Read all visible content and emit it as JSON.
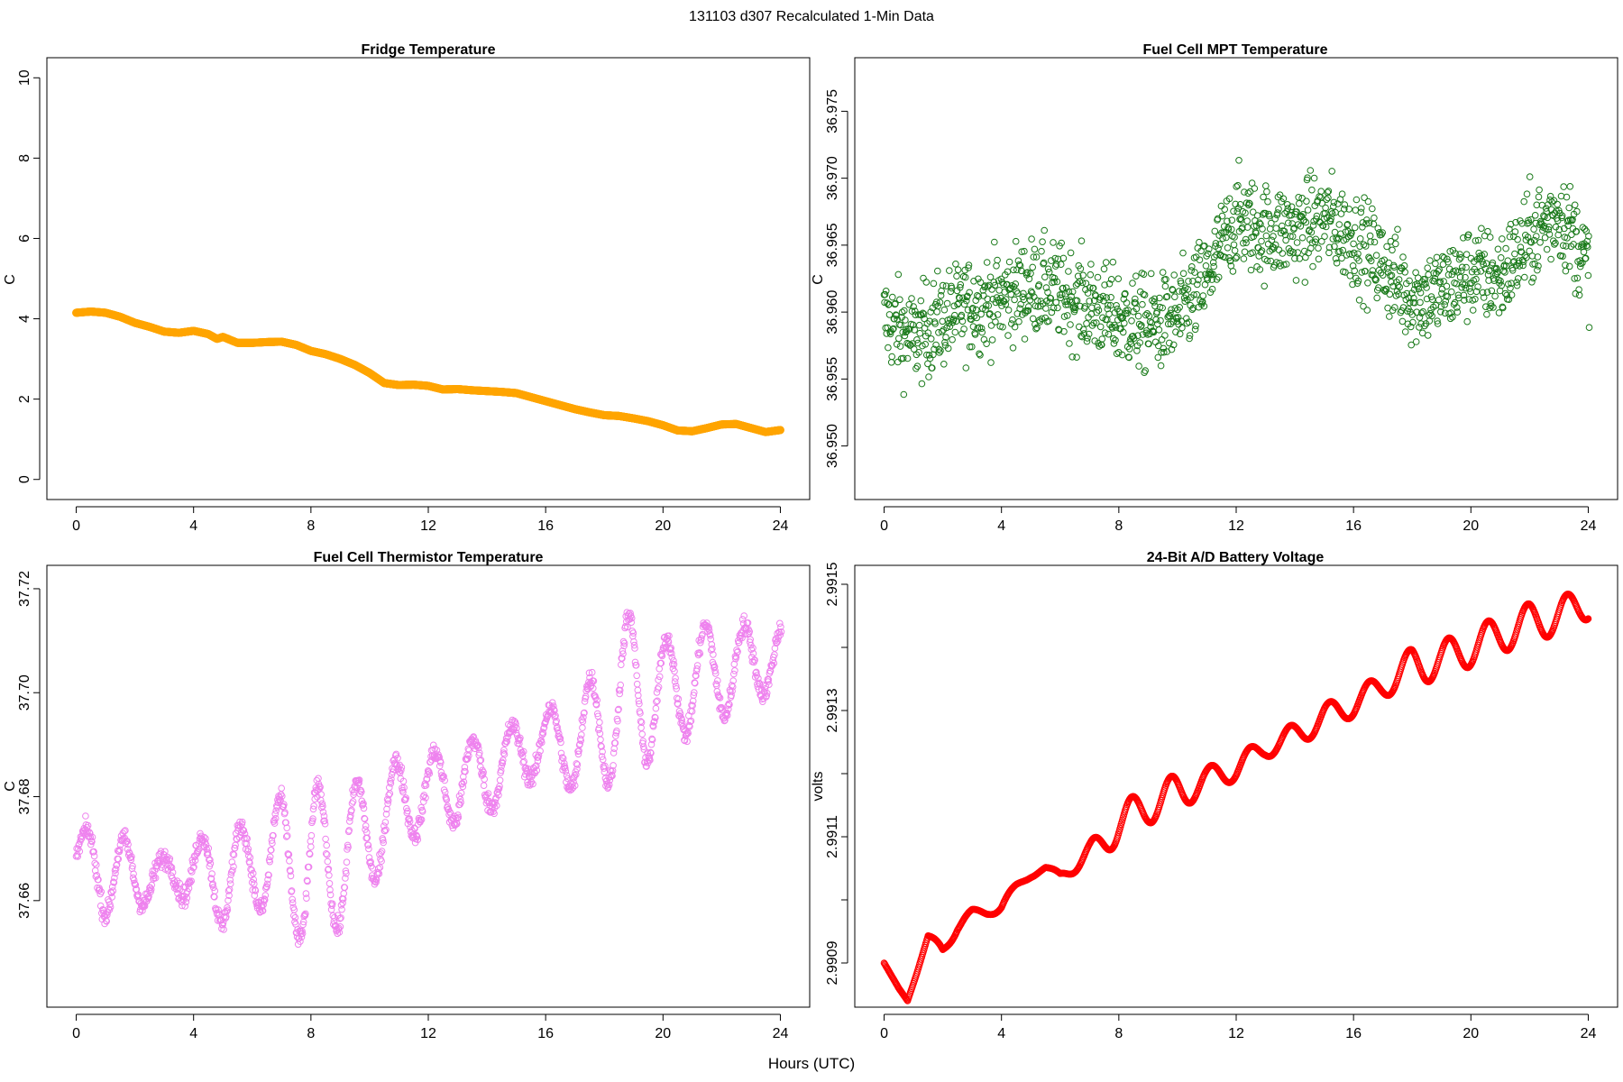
{
  "figure": {
    "title": "131103   d307   Recalculated 1-Min Data",
    "xlabel": "Hours (UTC)"
  },
  "chart_data": [
    {
      "id": "fridge",
      "type": "scatter",
      "title": "Fridge Temperature",
      "xlabel": "Hours (UTC)",
      "ylabel": "C",
      "color": "#ffa500",
      "xlim": [
        -1,
        25
      ],
      "ylim": [
        -0.5,
        10.5
      ],
      "xticks": [
        0,
        4,
        8,
        12,
        16,
        20,
        24
      ],
      "yticks": [
        0,
        2,
        4,
        6,
        8,
        10
      ],
      "ytick_labels": [
        "0",
        "2",
        "4",
        "6",
        "8",
        "10"
      ],
      "series": [
        {
          "name": "Fridge Temperature",
          "x": [
            0,
            0.5,
            1,
            1.5,
            2,
            2.5,
            3,
            3.5,
            4,
            4.5,
            4.8,
            5,
            5.5,
            6,
            6.5,
            7,
            7.5,
            8,
            8.5,
            9,
            9.5,
            10,
            10.5,
            11,
            11.5,
            12,
            12.5,
            13,
            13.5,
            14,
            14.5,
            15,
            15.5,
            16,
            16.5,
            17,
            17.5,
            18,
            18.5,
            19,
            19.5,
            20,
            20.5,
            21,
            21.5,
            22,
            22.5,
            23,
            23.5,
            24
          ],
          "values": [
            4.15,
            4.18,
            4.15,
            4.05,
            3.9,
            3.8,
            3.68,
            3.65,
            3.7,
            3.62,
            3.5,
            3.55,
            3.4,
            3.4,
            3.42,
            3.43,
            3.35,
            3.2,
            3.12,
            3.0,
            2.85,
            2.65,
            2.4,
            2.35,
            2.36,
            2.33,
            2.24,
            2.25,
            2.22,
            2.2,
            2.18,
            2.15,
            2.05,
            1.95,
            1.85,
            1.75,
            1.67,
            1.6,
            1.58,
            1.52,
            1.45,
            1.35,
            1.22,
            1.2,
            1.28,
            1.37,
            1.38,
            1.28,
            1.18,
            1.23
          ]
        }
      ]
    },
    {
      "id": "mpt",
      "type": "scatter",
      "title": "Fuel Cell MPT Temperature",
      "xlabel": "Hours (UTC)",
      "ylabel": "C",
      "color": "#1a7a1a",
      "xlim": [
        -1,
        25
      ],
      "ylim": [
        36.946,
        36.979
      ],
      "xticks": [
        0,
        4,
        8,
        12,
        16,
        20,
        24
      ],
      "yticks": [
        36.95,
        36.955,
        36.96,
        36.965,
        36.97,
        36.975
      ],
      "ytick_labels": [
        "36.950",
        "36.955",
        "36.960",
        "36.965",
        "36.970",
        "36.975"
      ],
      "series": [
        {
          "name": "Fuel Cell MPT Temperature",
          "x": [
            0,
            1,
            2,
            3,
            4,
            5,
            6,
            7,
            8,
            9,
            10,
            11,
            12,
            13,
            14,
            15,
            16,
            17,
            18,
            19,
            20,
            21,
            22,
            23,
            24
          ],
          "values": [
            36.9595,
            36.958,
            36.9595,
            36.9605,
            36.961,
            36.962,
            36.9615,
            36.9605,
            36.9595,
            36.959,
            36.9595,
            36.9625,
            36.967,
            36.966,
            36.966,
            36.967,
            36.9655,
            36.9635,
            36.961,
            36.9615,
            36.963,
            36.9625,
            36.9655,
            36.9675,
            36.9635
          ],
          "spread": 0.0035
        }
      ]
    },
    {
      "id": "thermistor",
      "type": "scatter",
      "title": "Fuel Cell Thermistor Temperature",
      "xlabel": "Hours (UTC)",
      "ylabel": "C",
      "color": "#ee82ee",
      "xlim": [
        -1,
        25
      ],
      "ylim": [
        37.6395,
        37.7245
      ],
      "xticks": [
        0,
        4,
        8,
        12,
        16,
        20,
        24
      ],
      "yticks": [
        37.66,
        37.68,
        37.7,
        37.72
      ],
      "ytick_labels": [
        "37.66",
        "37.68",
        "37.70",
        "37.72"
      ],
      "series": [
        {
          "name": "Fuel Cell Thermistor Temperature",
          "x": [
            0,
            1,
            2,
            3,
            4,
            5,
            6,
            7,
            8,
            9,
            10,
            11,
            12,
            13,
            14,
            15,
            16,
            17,
            18,
            19,
            20,
            21,
            22,
            23,
            24
          ],
          "values": [
            37.668,
            37.666,
            37.664,
            37.665,
            37.666,
            37.664,
            37.667,
            37.668,
            37.666,
            37.668,
            37.673,
            37.679,
            37.681,
            37.683,
            37.684,
            37.688,
            37.691,
            37.689,
            37.695,
            37.701,
            37.699,
            37.703,
            37.704,
            37.706,
            37.707
          ],
          "amplitude": [
            0.005,
            0.009,
            0.006,
            0.003,
            0.006,
            0.009,
            0.008,
            0.012,
            0.016,
            0.013,
            0.011,
            0.008,
            0.007,
            0.008,
            0.007,
            0.006,
            0.006,
            0.008,
            0.013,
            0.015,
            0.011,
            0.01,
            0.009,
            0.007,
            0.006
          ]
        }
      ]
    },
    {
      "id": "battery",
      "type": "scatter",
      "title": "24-Bit A/D Battery Voltage",
      "xlabel": "Hours (UTC)",
      "ylabel": "volts",
      "color": "#ff0000",
      "xlim": [
        -1,
        25
      ],
      "ylim": [
        2.99083,
        2.99153
      ],
      "xticks": [
        0,
        4,
        8,
        12,
        16,
        20,
        24
      ],
      "yticks": [
        2.9909,
        2.991,
        2.9911,
        2.9912,
        2.9913,
        2.9914,
        2.9915
      ],
      "ytick_labels": [
        "2.9909",
        "",
        "2.9911",
        "",
        "2.9913",
        "",
        "2.9915"
      ],
      "series": [
        {
          "name": "24-Bit A/D Battery Voltage",
          "x": [
            0,
            0.5,
            0.8,
            1.2,
            1.5,
            2,
            2.5,
            3,
            3.5,
            4,
            4.5,
            5,
            5.5,
            6,
            7,
            8,
            9,
            10,
            11,
            12,
            13,
            14,
            15,
            16,
            17,
            18,
            19,
            20,
            21,
            22,
            23,
            24
          ],
          "values": [
            2.9909,
            2.99086,
            2.99084,
            2.9909,
            2.99094,
            2.99092,
            2.99096,
            2.99098,
            2.99098,
            2.99099,
            2.99102,
            2.99104,
            2.99105,
            2.99104,
            2.99107,
            2.99112,
            2.99115,
            2.99117,
            2.99119,
            2.99121,
            2.99124,
            2.99126,
            2.99129,
            2.99131,
            2.99134,
            2.99137,
            2.99138,
            2.9914,
            2.99142,
            2.99144,
            2.99145,
            2.99147
          ],
          "amplitude": [
            0,
            0,
            0,
            5e-06,
            5e-06,
            1e-05,
            1e-05,
            5e-06,
            5e-06,
            1e-05,
            5e-06,
            5e-06,
            3e-06,
            5e-06,
            2e-05,
            3e-05,
            3e-05,
            3e-05,
            2e-05,
            2e-05,
            1.5e-05,
            2e-05,
            2e-05,
            2e-05,
            2e-05,
            3e-05,
            3e-05,
            3e-05,
            3e-05,
            3e-05,
            3e-05,
            2.5e-05
          ]
        }
      ]
    }
  ]
}
